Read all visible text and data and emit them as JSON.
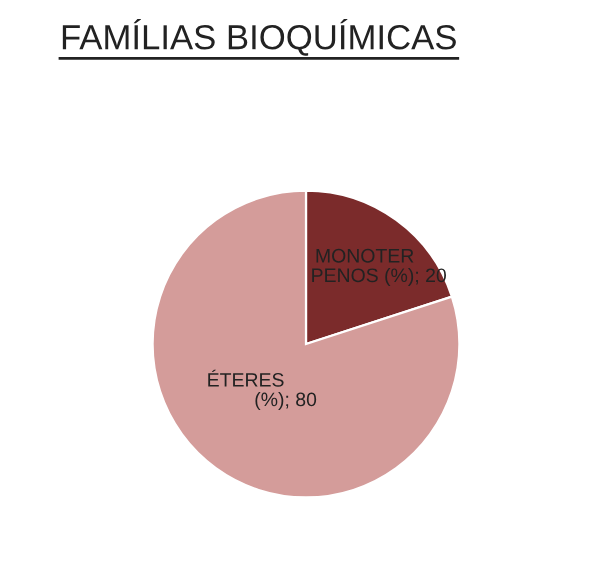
{
  "chart_data": {
    "type": "pie",
    "title": "FAMÍLIAS BIOQUÍMICAS",
    "categories": [
      "MONOTER\nPENOS (%)",
      "ÉTERES\n(%)"
    ],
    "values": [
      20,
      80
    ],
    "colors": [
      "#7b2b2b",
      "#d49c9a"
    ],
    "value_labels": [
      "; 20",
      "; 80"
    ],
    "legend": false
  }
}
